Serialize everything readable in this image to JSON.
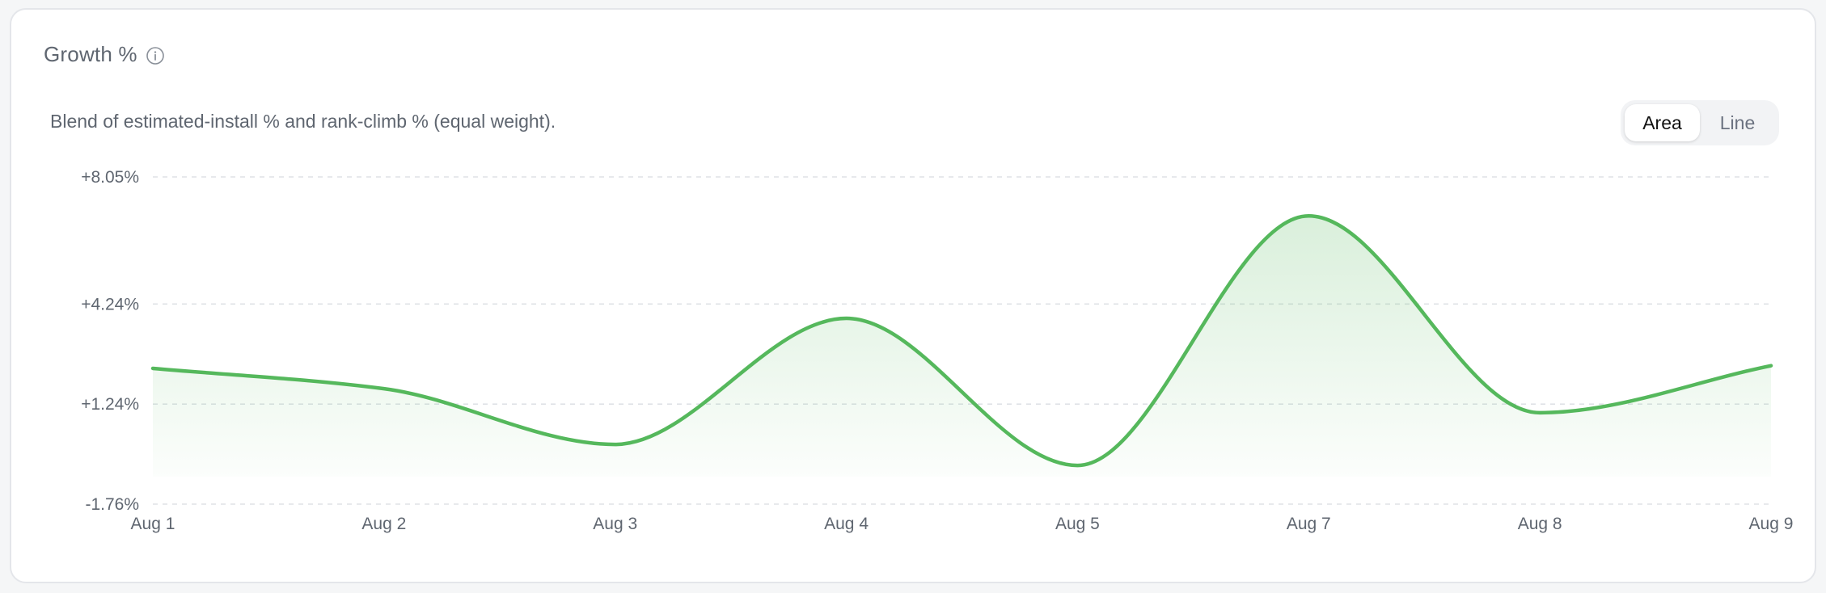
{
  "card": {
    "title": "Growth %",
    "subtitle": "Blend of estimated-install % and rank-climb % (equal weight).",
    "info_icon": "info-icon"
  },
  "toggle": {
    "options": [
      "Area",
      "Line"
    ],
    "selected": "Area"
  },
  "chart_data": {
    "type": "area",
    "categories": [
      "Aug 1",
      "Aug 2",
      "Aug 3",
      "Aug 4",
      "Aug 5",
      "Aug 7",
      "Aug 8",
      "Aug 9"
    ],
    "series": [
      {
        "values": [
          2.31,
          1.7,
          0.03,
          3.81,
          -0.6,
          6.88,
          0.98,
          2.39
        ],
        "color": "#55b85c"
      }
    ],
    "y_ticks": [
      {
        "value": 8.05,
        "label": "+8.05%"
      },
      {
        "value": 4.24,
        "label": "+4.24%"
      },
      {
        "value": 1.24,
        "label": "+1.24%"
      },
      {
        "value": -1.76,
        "label": "-1.76%"
      }
    ],
    "ylim": [
      -1.76,
      8.05
    ],
    "grid": true,
    "gridline_style": "dashed",
    "fill_gradient": true
  }
}
